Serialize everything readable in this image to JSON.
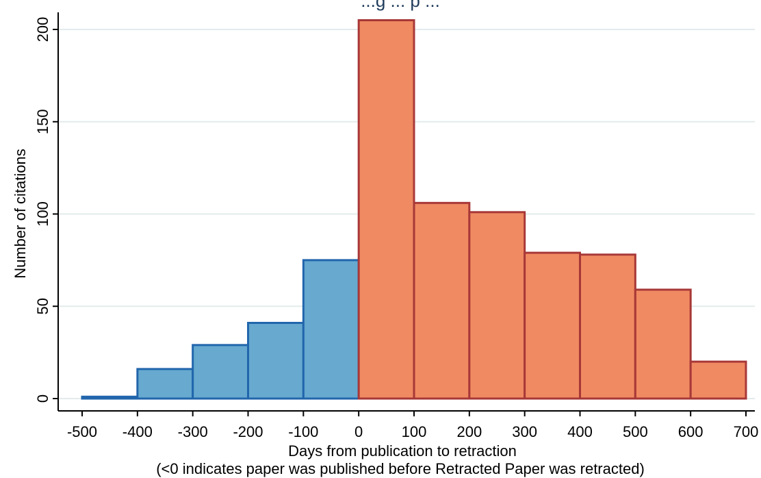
{
  "chart_data": {
    "type": "bar",
    "title": "...g ... p ...",
    "xlabel": "Days from publication to retraction",
    "xlabel_note": "(<0 indicates paper was published before Retracted Paper was retracted)",
    "ylabel": "Number of citations",
    "xlim": [
      -500,
      700
    ],
    "ylim": [
      0,
      200
    ],
    "x_ticks": [
      "-500",
      "-400",
      "-300",
      "-200",
      "-100",
      "0",
      "100",
      "200",
      "300",
      "400",
      "500",
      "600",
      "700"
    ],
    "y_ticks": [
      "0",
      "50",
      "100",
      "150",
      "200"
    ],
    "grid": true,
    "bins": [
      {
        "start": -500,
        "end": -400,
        "value": 1,
        "group": "before"
      },
      {
        "start": -400,
        "end": -300,
        "value": 16,
        "group": "before"
      },
      {
        "start": -300,
        "end": -200,
        "value": 29,
        "group": "before"
      },
      {
        "start": -200,
        "end": -100,
        "value": 41,
        "group": "before"
      },
      {
        "start": -100,
        "end": 0,
        "value": 75,
        "group": "before"
      },
      {
        "start": 0,
        "end": 100,
        "value": 205,
        "group": "after"
      },
      {
        "start": 100,
        "end": 200,
        "value": 106,
        "group": "after"
      },
      {
        "start": 200,
        "end": 300,
        "value": 101,
        "group": "after"
      },
      {
        "start": 300,
        "end": 400,
        "value": 79,
        "group": "after"
      },
      {
        "start": 400,
        "end": 500,
        "value": 78,
        "group": "after"
      },
      {
        "start": 500,
        "end": 600,
        "value": 59,
        "group": "after"
      },
      {
        "start": 600,
        "end": 700,
        "value": 20,
        "group": "after"
      }
    ],
    "colors": {
      "before_fill": "#67a9cf",
      "before_stroke": "#2166ac",
      "after_fill": "#ef8a62",
      "after_stroke": "#a83838",
      "grid": "#e3ebec",
      "axis": "#000000"
    }
  }
}
